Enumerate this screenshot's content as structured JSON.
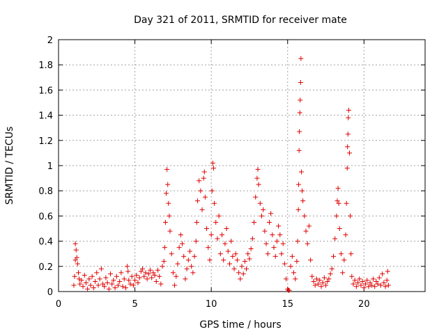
{
  "chart_data": {
    "type": "scatter",
    "title": "Day 321 of 2011, SRMTID for receiver mate",
    "xlabel": "GPS time / hours",
    "ylabel": "SRMTID / TECUs",
    "xlim": [
      0,
      24
    ],
    "ylim": [
      0,
      2
    ],
    "xticks": [
      0,
      5,
      10,
      15,
      20
    ],
    "yticks": [
      0,
      0.2,
      0.4,
      0.6,
      0.8,
      1,
      1.2,
      1.4,
      1.6,
      1.8,
      2
    ],
    "xtick_labels": [
      "0",
      "5",
      "10",
      "15",
      "20"
    ],
    "ytick_labels": [
      "0",
      "0.2",
      "0.4",
      "0.6",
      "0.8",
      "1",
      "1.2",
      "1.4",
      "1.6",
      "1.8",
      "2"
    ],
    "grid": true,
    "marker": "+",
    "marker_color": "#e00000",
    "series": [
      {
        "points": [
          [
            1.0,
            0.05
          ],
          [
            1.05,
            0.12
          ],
          [
            1.1,
            0.25
          ],
          [
            1.1,
            0.38
          ],
          [
            1.15,
            0.33
          ],
          [
            1.2,
            0.27
          ],
          [
            1.25,
            0.22
          ],
          [
            1.3,
            0.15
          ],
          [
            1.35,
            0.1
          ],
          [
            1.4,
            0.06
          ],
          [
            1.5,
            0.09
          ],
          [
            1.6,
            0.04
          ],
          [
            1.7,
            0.13
          ],
          [
            1.8,
            0.07
          ],
          [
            1.9,
            0.02
          ],
          [
            2.0,
            0.1
          ],
          [
            2.1,
            0.05
          ],
          [
            2.2,
            0.12
          ],
          [
            2.3,
            0.03
          ],
          [
            2.4,
            0.08
          ],
          [
            2.5,
            0.15
          ],
          [
            2.6,
            0.05
          ],
          [
            2.7,
            0.1
          ],
          [
            2.8,
            0.18
          ],
          [
            2.9,
            0.06
          ],
          [
            3.0,
            0.04
          ],
          [
            3.1,
            0.11
          ],
          [
            3.2,
            0.07
          ],
          [
            3.3,
            0.02
          ],
          [
            3.4,
            0.14
          ],
          [
            3.5,
            0.06
          ],
          [
            3.6,
            0.09
          ],
          [
            3.7,
            0.03
          ],
          [
            3.8,
            0.12
          ],
          [
            3.9,
            0.05
          ],
          [
            4.0,
            0.08
          ],
          [
            4.1,
            0.15
          ],
          [
            4.2,
            0.04
          ],
          [
            4.3,
            0.1
          ],
          [
            4.4,
            0.03
          ],
          [
            4.5,
            0.2
          ],
          [
            4.55,
            0.16
          ],
          [
            4.6,
            0.09
          ],
          [
            4.7,
            0.06
          ],
          [
            4.8,
            0.12
          ],
          [
            4.9,
            0.05
          ],
          [
            5.0,
            0.09
          ],
          [
            5.1,
            0.13
          ],
          [
            5.2,
            0.07
          ],
          [
            5.3,
            0.11
          ],
          [
            5.4,
            0.16
          ],
          [
            5.5,
            0.18
          ],
          [
            5.6,
            0.12
          ],
          [
            5.7,
            0.15
          ],
          [
            5.8,
            0.1
          ],
          [
            5.9,
            0.14
          ],
          [
            6.0,
            0.17
          ],
          [
            6.1,
            0.11
          ],
          [
            6.2,
            0.15
          ],
          [
            6.3,
            0.13
          ],
          [
            6.4,
            0.08
          ],
          [
            6.5,
            0.17
          ],
          [
            6.6,
            0.12
          ],
          [
            6.7,
            0.06
          ],
          [
            6.8,
            0.2
          ],
          [
            6.9,
            0.24
          ],
          [
            6.95,
            0.35
          ],
          [
            7.0,
            0.55
          ],
          [
            7.05,
            0.78
          ],
          [
            7.1,
            0.97
          ],
          [
            7.15,
            0.85
          ],
          [
            7.2,
            0.7
          ],
          [
            7.25,
            0.6
          ],
          [
            7.3,
            0.48
          ],
          [
            7.4,
            0.3
          ],
          [
            7.5,
            0.15
          ],
          [
            7.6,
            0.05
          ],
          [
            7.7,
            0.12
          ],
          [
            7.8,
            0.22
          ],
          [
            7.9,
            0.35
          ],
          [
            8.0,
            0.45
          ],
          [
            8.1,
            0.38
          ],
          [
            8.2,
            0.28
          ],
          [
            8.3,
            0.1
          ],
          [
            8.4,
            0.18
          ],
          [
            8.5,
            0.25
          ],
          [
            8.6,
            0.32
          ],
          [
            8.7,
            0.2
          ],
          [
            8.8,
            0.15
          ],
          [
            8.9,
            0.28
          ],
          [
            9.0,
            0.4
          ],
          [
            9.05,
            0.55
          ],
          [
            9.1,
            0.72
          ],
          [
            9.2,
            0.88
          ],
          [
            9.3,
            0.8
          ],
          [
            9.4,
            0.65
          ],
          [
            9.5,
            0.9
          ],
          [
            9.55,
            0.95
          ],
          [
            9.6,
            0.75
          ],
          [
            9.7,
            0.5
          ],
          [
            9.8,
            0.35
          ],
          [
            9.9,
            0.25
          ],
          [
            10.0,
            0.45
          ],
          [
            10.05,
            0.8
          ],
          [
            10.1,
            1.02
          ],
          [
            10.15,
            0.98
          ],
          [
            10.2,
            0.7
          ],
          [
            10.3,
            0.55
          ],
          [
            10.4,
            0.42
          ],
          [
            10.5,
            0.6
          ],
          [
            10.6,
            0.3
          ],
          [
            10.7,
            0.45
          ],
          [
            10.8,
            0.25
          ],
          [
            10.9,
            0.38
          ],
          [
            11.0,
            0.5
          ],
          [
            11.1,
            0.32
          ],
          [
            11.2,
            0.22
          ],
          [
            11.3,
            0.4
          ],
          [
            11.4,
            0.28
          ],
          [
            11.5,
            0.18
          ],
          [
            11.6,
            0.3
          ],
          [
            11.7,
            0.25
          ],
          [
            11.8,
            0.15
          ],
          [
            11.9,
            0.1
          ],
          [
            12.0,
            0.2
          ],
          [
            12.1,
            0.14
          ],
          [
            12.2,
            0.24
          ],
          [
            12.3,
            0.18
          ],
          [
            12.4,
            0.3
          ],
          [
            12.5,
            0.26
          ],
          [
            12.6,
            0.34
          ],
          [
            12.7,
            0.42
          ],
          [
            12.8,
            0.55
          ],
          [
            12.9,
            0.75
          ],
          [
            13.0,
            0.9
          ],
          [
            13.05,
            0.97
          ],
          [
            13.1,
            0.85
          ],
          [
            13.2,
            0.7
          ],
          [
            13.3,
            0.6
          ],
          [
            13.4,
            0.65
          ],
          [
            13.5,
            0.48
          ],
          [
            13.6,
            0.38
          ],
          [
            13.7,
            0.3
          ],
          [
            13.8,
            0.55
          ],
          [
            13.9,
            0.62
          ],
          [
            14.0,
            0.45
          ],
          [
            14.1,
            0.35
          ],
          [
            14.2,
            0.28
          ],
          [
            14.3,
            0.4
          ],
          [
            14.4,
            0.52
          ],
          [
            14.5,
            0.45
          ],
          [
            14.6,
            0.3
          ],
          [
            14.7,
            0.38
          ],
          [
            14.8,
            0.22
          ],
          [
            14.9,
            0.1
          ],
          [
            15.0,
            0.02
          ],
          [
            15.05,
            0.01
          ],
          [
            15.1,
            0.01
          ],
          [
            15.2,
            0.2
          ],
          [
            15.3,
            0.28
          ],
          [
            15.4,
            0.15
          ],
          [
            15.5,
            0.1
          ],
          [
            15.6,
            0.24
          ],
          [
            15.65,
            0.4
          ],
          [
            15.7,
            0.65
          ],
          [
            15.72,
            0.85
          ],
          [
            15.75,
            1.12
          ],
          [
            15.77,
            1.27
          ],
          [
            15.8,
            1.42
          ],
          [
            15.82,
            1.52
          ],
          [
            15.85,
            1.66
          ],
          [
            15.87,
            1.85
          ],
          [
            15.9,
            0.95
          ],
          [
            15.95,
            0.8
          ],
          [
            16.0,
            0.72
          ],
          [
            16.1,
            0.6
          ],
          [
            16.2,
            0.48
          ],
          [
            16.3,
            0.38
          ],
          [
            16.4,
            0.52
          ],
          [
            16.5,
            0.25
          ],
          [
            16.6,
            0.12
          ],
          [
            16.7,
            0.08
          ],
          [
            16.8,
            0.05
          ],
          [
            16.9,
            0.1
          ],
          [
            17.0,
            0.06
          ],
          [
            17.1,
            0.09
          ],
          [
            17.2,
            0.04
          ],
          [
            17.3,
            0.07
          ],
          [
            17.4,
            0.11
          ],
          [
            17.5,
            0.05
          ],
          [
            17.6,
            0.08
          ],
          [
            17.7,
            0.1
          ],
          [
            17.8,
            0.14
          ],
          [
            17.9,
            0.18
          ],
          [
            18.0,
            0.28
          ],
          [
            18.1,
            0.42
          ],
          [
            18.2,
            0.6
          ],
          [
            18.25,
            0.72
          ],
          [
            18.3,
            0.82
          ],
          [
            18.35,
            0.7
          ],
          [
            18.4,
            0.5
          ],
          [
            18.5,
            0.3
          ],
          [
            18.6,
            0.15
          ],
          [
            18.7,
            0.25
          ],
          [
            18.8,
            0.45
          ],
          [
            18.85,
            0.7
          ],
          [
            18.9,
            0.98
          ],
          [
            18.92,
            1.15
          ],
          [
            18.95,
            1.25
          ],
          [
            18.97,
            1.38
          ],
          [
            19.0,
            1.44
          ],
          [
            19.05,
            1.1
          ],
          [
            19.1,
            0.6
          ],
          [
            19.15,
            0.3
          ],
          [
            19.2,
            0.12
          ],
          [
            19.3,
            0.06
          ],
          [
            19.4,
            0.09
          ],
          [
            19.5,
            0.04
          ],
          [
            19.6,
            0.07
          ],
          [
            19.7,
            0.1
          ],
          [
            19.8,
            0.05
          ],
          [
            19.9,
            0.08
          ],
          [
            20.0,
            0.03
          ],
          [
            20.1,
            0.06
          ],
          [
            20.2,
            0.09
          ],
          [
            20.3,
            0.04
          ],
          [
            20.4,
            0.07
          ],
          [
            20.5,
            0.05
          ],
          [
            20.6,
            0.1
          ],
          [
            20.7,
            0.04
          ],
          [
            20.8,
            0.08
          ],
          [
            20.9,
            0.06
          ],
          [
            21.0,
            0.11
          ],
          [
            21.1,
            0.05
          ],
          [
            21.2,
            0.14
          ],
          [
            21.3,
            0.07
          ],
          [
            21.4,
            0.04
          ],
          [
            21.5,
            0.09
          ],
          [
            21.55,
            0.16
          ],
          [
            21.6,
            0.05
          ]
        ]
      }
    ]
  }
}
